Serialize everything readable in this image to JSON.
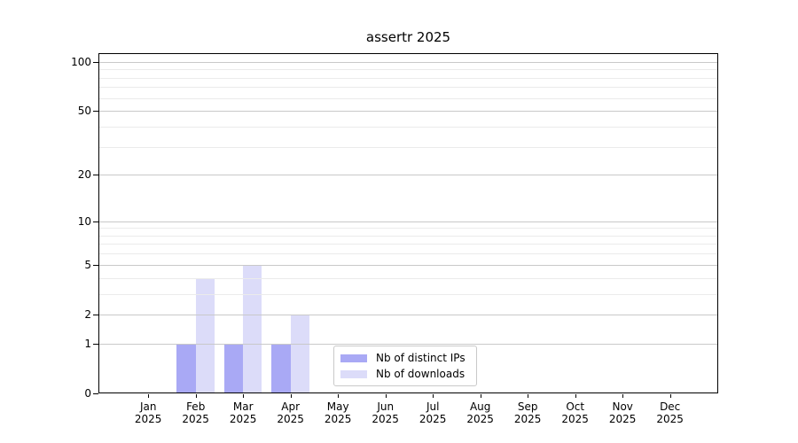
{
  "chart_data": {
    "type": "bar",
    "title": "assertr 2025",
    "categories": [
      "Jan",
      "Feb",
      "Mar",
      "Apr",
      "May",
      "Jun",
      "Jul",
      "Aug",
      "Sep",
      "Oct",
      "Nov",
      "Dec"
    ],
    "category_sublabel": "2025",
    "series": [
      {
        "name": "Nb of distinct IPs",
        "color": "#a9a9f5",
        "values": [
          0,
          1,
          1,
          1,
          0,
          0,
          0,
          0,
          0,
          0,
          0,
          0
        ]
      },
      {
        "name": "Nb of downloads",
        "color": "#dcdcf9",
        "values": [
          0,
          4,
          5,
          2,
          0,
          0,
          0,
          0,
          0,
          0,
          0,
          0
        ]
      }
    ],
    "yscale": "log1p",
    "ylim": [
      0,
      113
    ],
    "yticks": [
      0,
      1,
      2,
      5,
      10,
      20,
      50,
      100
    ],
    "minor_gridlines": [
      3,
      4,
      6,
      7,
      8,
      9,
      30,
      40,
      60,
      70,
      80,
      90
    ],
    "grid": "horizontal",
    "legend_position": "inside-bottom-center",
    "colors": {
      "major_grid": "#c9c9c9",
      "minor_grid": "#ebebeb",
      "axis": "#000000",
      "text": "#000000",
      "background": "#ffffff"
    }
  }
}
